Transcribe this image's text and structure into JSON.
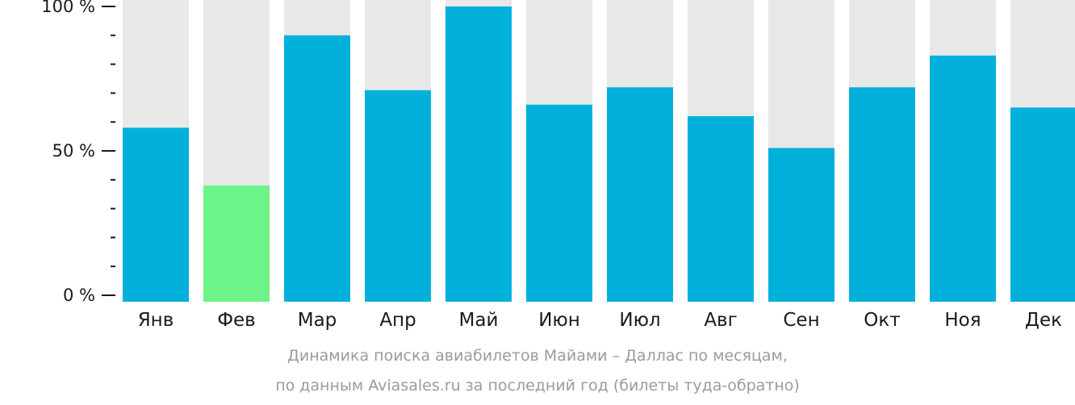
{
  "chart_data": {
    "type": "bar",
    "categories": [
      "Янв",
      "Фев",
      "Мар",
      "Апр",
      "Май",
      "Июн",
      "Июл",
      "Авг",
      "Сен",
      "Окт",
      "Ноя",
      "Дек"
    ],
    "values": [
      58,
      38,
      90,
      71,
      100,
      66,
      72,
      62,
      51,
      72,
      83,
      65
    ],
    "highlight_index": 1,
    "ylim": [
      0,
      100
    ],
    "yticks": [
      "0 %",
      "50 %",
      "100 %"
    ],
    "colors": {
      "bar": "#02b0dc",
      "highlight": "#6cf489",
      "track": "#e8e8e8",
      "axis": "#1a1a1a",
      "text": "#1a1a1a",
      "caption": "#9b9b9b"
    }
  },
  "caption": {
    "line1": "Динамика поиска авиабилетов Майами – Даллас по месяцам,",
    "line2": "по данным Aviasales.ru за последний год (билеты туда-обратно)"
  }
}
